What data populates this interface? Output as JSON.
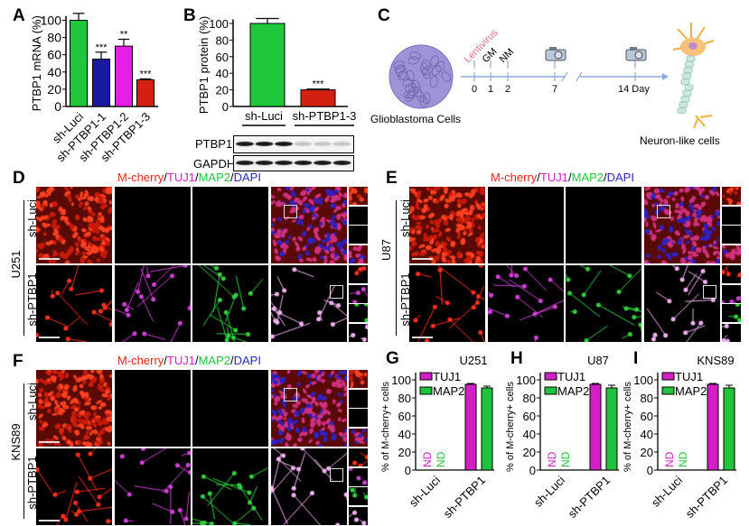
{
  "panels": {
    "A": "A",
    "B": "B",
    "C": "C",
    "D": "D",
    "E": "E",
    "F": "F",
    "G": "G",
    "H": "H",
    "I": "I"
  },
  "stain_title": {
    "mcherry": "M-cherry",
    "sep1": "/",
    "tuj1": "TUJ1",
    "sep2": "/",
    "map2": "MAP2",
    "sep3": "/",
    "dapi": "DAPI"
  },
  "colors": {
    "mcherry": "#e0281c",
    "tuj1": "#d21fc8",
    "map2": "#1fc43c",
    "dapi": "#2a2ab5",
    "green_bar": "#1ec83a",
    "blue_bar": "#1a1aa0",
    "magenta_bar": "#e61ee6",
    "red_bar": "#d42010"
  },
  "blot": {
    "labels": [
      "PTBP1",
      "GAPDH"
    ]
  },
  "schematic": {
    "start_label": "Glioblastoma Cells",
    "end_label": "Neuron-like cells",
    "events": [
      {
        "label": "Lentivirus",
        "day": "0"
      },
      {
        "label": "GM",
        "day": "1"
      },
      {
        "label": "NM",
        "day": "2"
      },
      {
        "label": "",
        "day": "7"
      },
      {
        "label": "",
        "day": "14 Day"
      }
    ]
  },
  "image_panels": [
    {
      "cell_line": "U251",
      "rows": [
        "sh-Luci",
        "sh-PTBP1"
      ]
    },
    {
      "cell_line": "U87",
      "rows": [
        "sh-Luci",
        "sh-PTBP1"
      ]
    },
    {
      "cell_line": "KNS89",
      "rows": [
        "sh-Luci",
        "sh-PTBP1"
      ]
    }
  ],
  "chart_data": [
    {
      "type": "bar",
      "panel": "A",
      "ylabel": "PTBP1 mRNA (%)",
      "ylim": [
        0,
        100
      ],
      "yticks": [
        0,
        20,
        40,
        60,
        80,
        100
      ],
      "categories": [
        "sh-Luci",
        "sh-PTBP1-1",
        "sh-PTBP1-2",
        "sh-PTBP1-3"
      ],
      "values": [
        100,
        55,
        70,
        31
      ],
      "errors": [
        8,
        8,
        8,
        1
      ],
      "significance": [
        "",
        "***",
        "**",
        "***"
      ],
      "bar_colors": [
        "#1ec83a",
        "#1a1aa0",
        "#e61ee6",
        "#d42010"
      ]
    },
    {
      "type": "bar",
      "panel": "B",
      "ylabel": "PTBP1 protein (%)",
      "ylim": [
        0,
        100
      ],
      "yticks": [
        0,
        20,
        40,
        60,
        80,
        100
      ],
      "categories": [
        "sh-Luci",
        "sh-PTBP1-3"
      ],
      "values": [
        100,
        20
      ],
      "errors": [
        6,
        1
      ],
      "significance": [
        "",
        "***"
      ],
      "bar_colors": [
        "#1ec83a",
        "#d42010"
      ]
    },
    {
      "type": "bar",
      "panel": "G",
      "title": "U251",
      "ylabel": "% of M-cherry+ cells",
      "ylim": [
        0,
        100
      ],
      "yticks": [
        0,
        20,
        40,
        60,
        80,
        100
      ],
      "categories": [
        "sh-Luci",
        "sh-PTBP1"
      ],
      "series": [
        {
          "name": "TUJ1",
          "values": [
            0,
            95
          ],
          "errors": [
            0,
            1
          ]
        },
        {
          "name": "MAP2",
          "values": [
            0,
            91
          ],
          "errors": [
            0,
            2
          ]
        }
      ],
      "nd_label": "ND"
    },
    {
      "type": "bar",
      "panel": "H",
      "title": "U87",
      "ylabel": "% of M-cherry+ cells",
      "ylim": [
        0,
        100
      ],
      "yticks": [
        0,
        20,
        40,
        60,
        80,
        100
      ],
      "categories": [
        "sh-Luci",
        "sh-PTBP1"
      ],
      "series": [
        {
          "name": "TUJ1",
          "values": [
            0,
            95
          ],
          "errors": [
            0,
            1
          ]
        },
        {
          "name": "MAP2",
          "values": [
            0,
            91
          ],
          "errors": [
            0,
            3
          ]
        }
      ],
      "nd_label": "ND"
    },
    {
      "type": "bar",
      "panel": "I",
      "title": "KNS89",
      "ylabel": "% of M-cherry+ cells",
      "ylim": [
        0,
        100
      ],
      "yticks": [
        0,
        20,
        40,
        60,
        80,
        100
      ],
      "categories": [
        "sh-Luci",
        "sh-PTBP1"
      ],
      "series": [
        {
          "name": "TUJ1",
          "values": [
            0,
            95
          ],
          "errors": [
            0,
            1
          ]
        },
        {
          "name": "MAP2",
          "values": [
            0,
            91
          ],
          "errors": [
            0,
            3
          ]
        }
      ],
      "nd_label": "ND"
    }
  ]
}
